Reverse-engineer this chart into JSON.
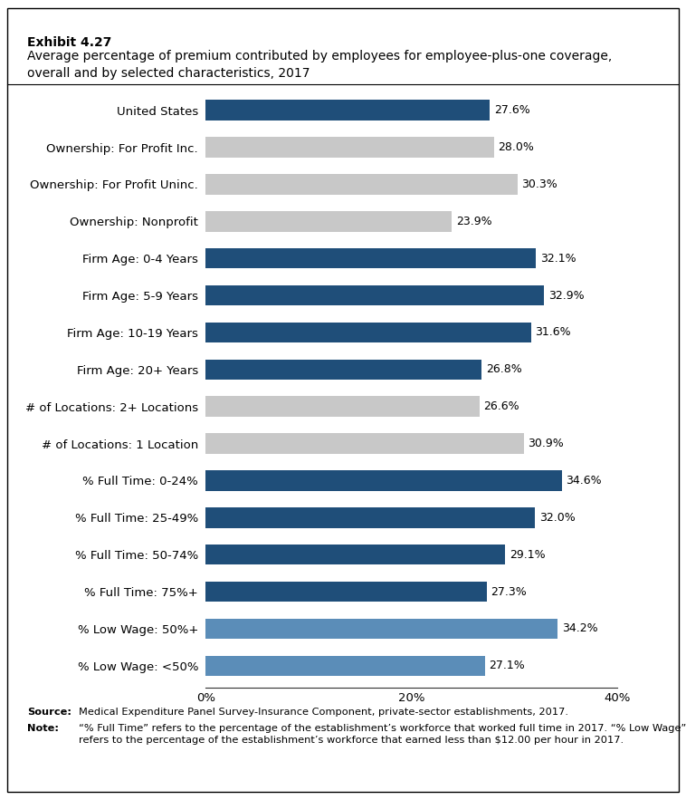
{
  "title_line1": "Exhibit 4.27",
  "title_line2": "Average percentage of premium contributed by employees for employee-plus-one coverage,\noverall and by selected characteristics, 2017",
  "categories": [
    "% Low Wage: <50%",
    "% Low Wage: 50%+",
    "% Full Time: 75%+",
    "% Full Time: 50-74%",
    "% Full Time: 25-49%",
    "% Full Time: 0-24%",
    "# of Locations: 1 Location",
    "# of Locations: 2+ Locations",
    "Firm Age: 20+ Years",
    "Firm Age: 10-19 Years",
    "Firm Age: 5-9 Years",
    "Firm Age: 0-4 Years",
    "Ownership: Nonprofit",
    "Ownership: For Profit Uninc.",
    "Ownership: For Profit Inc.",
    "United States"
  ],
  "values": [
    27.1,
    34.2,
    27.3,
    29.1,
    32.0,
    34.6,
    30.9,
    26.6,
    26.8,
    31.6,
    32.9,
    32.1,
    23.9,
    30.3,
    28.0,
    27.6
  ],
  "colors": [
    "#5b8db8",
    "#5b8db8",
    "#1f4e79",
    "#1f4e79",
    "#1f4e79",
    "#1f4e79",
    "#c8c8c8",
    "#c8c8c8",
    "#1f4e79",
    "#1f4e79",
    "#1f4e79",
    "#1f4e79",
    "#c8c8c8",
    "#c8c8c8",
    "#c8c8c8",
    "#1f4e79"
  ],
  "xlim": [
    0,
    40
  ],
  "xticks": [
    0,
    20,
    40
  ],
  "xticklabels": [
    "0%",
    "20%",
    "40%"
  ],
  "source_label": "Source:",
  "source_text": " Medical Expenditure Panel Survey-Insurance Component, private-sector establishments, 2017.",
  "note_label": "Note:",
  "note_text": " “% Full Time” refers to the percentage of the establishment’s workforce that worked full time in 2017. “% Low Wage”\nrefers to the percentage of the establishment’s workforce that earned less than $12.00 per hour in 2017.",
  "bar_height": 0.55,
  "label_fontsize": 9,
  "tick_fontsize": 9.5,
  "value_fontsize": 9,
  "fig_width": 7.58,
  "fig_height": 8.83,
  "dpi": 100
}
